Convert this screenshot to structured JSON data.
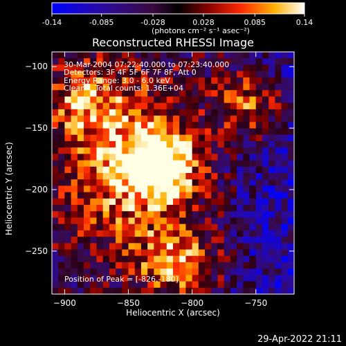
{
  "colorbar": {
    "ticks": [
      "-0.14",
      "-0.085",
      "-0.028",
      "0.028",
      "0.085",
      "0.14"
    ],
    "tick_values": [
      -0.14,
      -0.085,
      -0.028,
      0.028,
      0.085,
      0.14
    ],
    "unit_label": "(photons cm⁻² s⁻¹ asec⁻²)"
  },
  "chart_data": {
    "type": "heatmap",
    "title": "Reconstructed RHESSI Image",
    "xlabel": "Heliocentric X (arcsec)",
    "ylabel": "Heliocentric Y (arcsec)",
    "xlim": [
      -910,
      -720
    ],
    "ylim": [
      -285,
      -88
    ],
    "x_ticks": [
      -900,
      -850,
      -800,
      -750
    ],
    "y_ticks": [
      -100,
      -150,
      -200,
      -250
    ],
    "value_range": [
      -0.14,
      0.14
    ],
    "bright_sources": [
      {
        "x": -826,
        "y": -180,
        "level": 0.14
      },
      {
        "x": -812,
        "y": -258,
        "level": 0.1
      },
      {
        "x": -752,
        "y": -130,
        "level": 0.095
      },
      {
        "x": -888,
        "y": -126,
        "level": 0.06
      }
    ],
    "annotations": {
      "time_range": "30-Mar-2004 07:22:40.000 to 07:23:40.000",
      "detectors": "Detectors: 3F 4F 5F 6F 7F 8F, Att 0",
      "energy": "Energy Range: 3.0 - 6.0 keV",
      "algorithm": "Clean",
      "total_counts": "Total counts: 1.36E+04",
      "peak": "Position of Peak = [-826,-180]"
    }
  },
  "timestamp": "29-Apr-2022 21:11"
}
